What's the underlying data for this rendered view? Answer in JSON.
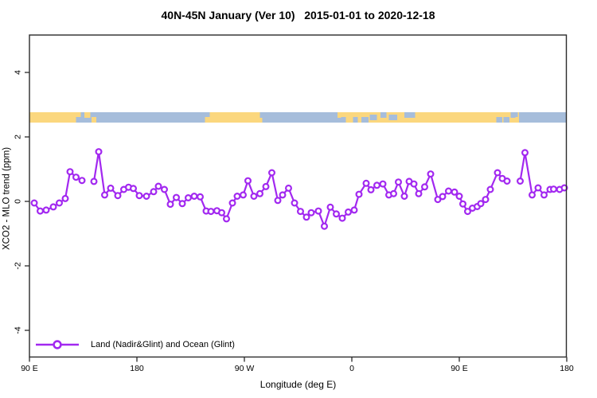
{
  "title": "40N-45N January (Ver 10)   2015-01-01 to 2020-12-18",
  "legend": {
    "label": "Land (Nadir&Glint) and Ocean (Glint)"
  },
  "colors": {
    "series": "#A228F0",
    "marker_fill": "#ffffff",
    "land": "#FBD77E",
    "ocean": "#A6BDDB",
    "axis": "#2b2b2b",
    "text": "#000000",
    "background": "#ffffff"
  },
  "chart_data": {
    "type": "line",
    "title": "40N-45N January (Ver 10)   2015-01-01 to 2020-12-18",
    "xlabel": "Longitude (deg E)",
    "ylabel": "XCO2 - MLO trend (ppm)",
    "xlim": [
      90,
      540
    ],
    "ylim": [
      -5,
      5.2
    ],
    "grid": false,
    "legend_position": "bottom-left-inside",
    "x_ticks": [
      {
        "deg": 90,
        "label": "90 E"
      },
      {
        "deg": 180,
        "label": "180"
      },
      {
        "deg": 270,
        "label": "90 W"
      },
      {
        "deg": 360,
        "label": "0"
      },
      {
        "deg": 450,
        "label": "90 E"
      },
      {
        "deg": 540,
        "label": "180"
      }
    ],
    "y_ticks": [
      {
        "v": -4,
        "label": "-4"
      },
      {
        "v": -2,
        "label": "-2"
      },
      {
        "v": 0,
        "label": "0"
      },
      {
        "v": 2,
        "label": "2"
      },
      {
        "v": 4,
        "label": "4"
      }
    ],
    "series": [
      {
        "name": "Land (Nadir&Glint) and Ocean (Glint)",
        "marker": "open-circle",
        "color": "#A228F0",
        "units": "ppm",
        "points": [
          [
            94,
            -0.05
          ],
          [
            99,
            -0.3
          ],
          [
            104,
            -0.27
          ],
          [
            110,
            -0.17
          ],
          [
            115,
            -0.05
          ],
          [
            120,
            0.09
          ],
          [
            124,
            0.92
          ],
          [
            129,
            0.75
          ],
          [
            134,
            0.65
          ],
          [
            144,
            0.62
          ],
          [
            148,
            1.54
          ],
          [
            153,
            0.2
          ],
          [
            158,
            0.41
          ],
          [
            164,
            0.18
          ],
          [
            169,
            0.37
          ],
          [
            173,
            0.44
          ],
          [
            177,
            0.4
          ],
          [
            182,
            0.18
          ],
          [
            188,
            0.16
          ],
          [
            194,
            0.3
          ],
          [
            198,
            0.47
          ],
          [
            203,
            0.37
          ],
          [
            208,
            -0.09
          ],
          [
            213,
            0.12
          ],
          [
            218,
            -0.07
          ],
          [
            223,
            0.11
          ],
          [
            228,
            0.16
          ],
          [
            233,
            0.14
          ],
          [
            238,
            -0.3
          ],
          [
            242,
            -0.31
          ],
          [
            247,
            -0.29
          ],
          [
            251,
            -0.35
          ],
          [
            255,
            -0.54
          ],
          [
            260,
            -0.05
          ],
          [
            264,
            0.16
          ],
          [
            269,
            0.2
          ],
          [
            273,
            0.64
          ],
          [
            278,
            0.16
          ],
          [
            283,
            0.24
          ],
          [
            288,
            0.46
          ],
          [
            293,
            0.89
          ],
          [
            298,
            0.03
          ],
          [
            302,
            0.2
          ],
          [
            307,
            0.41
          ],
          [
            312,
            -0.05
          ],
          [
            317,
            -0.31
          ],
          [
            322,
            -0.49
          ],
          [
            326,
            -0.35
          ],
          [
            332,
            -0.3
          ],
          [
            337,
            -0.77
          ],
          [
            342,
            -0.18
          ],
          [
            347,
            -0.39
          ],
          [
            352,
            -0.52
          ],
          [
            357,
            -0.33
          ],
          [
            362,
            -0.27
          ],
          [
            366,
            0.22
          ],
          [
            372,
            0.56
          ],
          [
            376,
            0.36
          ],
          [
            381,
            0.5
          ],
          [
            386,
            0.54
          ],
          [
            391,
            0.2
          ],
          [
            395,
            0.24
          ],
          [
            399,
            0.6
          ],
          [
            404,
            0.16
          ],
          [
            408,
            0.62
          ],
          [
            412,
            0.54
          ],
          [
            416,
            0.24
          ],
          [
            421,
            0.45
          ],
          [
            426,
            0.85
          ],
          [
            432,
            0.06
          ],
          [
            436,
            0.15
          ],
          [
            441,
            0.32
          ],
          [
            446,
            0.29
          ],
          [
            450,
            0.16
          ],
          [
            453,
            -0.08
          ],
          [
            457,
            -0.31
          ],
          [
            461,
            -0.21
          ],
          [
            465,
            -0.16
          ],
          [
            468,
            -0.07
          ],
          [
            472,
            0.06
          ],
          [
            476,
            0.37
          ],
          [
            482,
            0.89
          ],
          [
            486,
            0.71
          ],
          [
            490,
            0.63
          ],
          [
            501,
            0.63
          ],
          [
            505,
            1.51
          ],
          [
            511,
            0.2
          ],
          [
            516,
            0.42
          ],
          [
            521,
            0.2
          ],
          [
            526,
            0.37
          ],
          [
            529,
            0.38
          ],
          [
            534,
            0.37
          ],
          [
            538,
            0.42
          ]
        ],
        "gap_threshold_deg": 8
      }
    ],
    "map_band": {
      "description": "land/ocean strip along 40N-45N drawn near 2.6 ppm",
      "center_ppm": 2.6,
      "land_color": "#FBD77E",
      "ocean_color": "#A6BDDB",
      "land_segments_deg": [
        [
          90,
          133
        ],
        [
          241,
          289
        ],
        [
          351,
          500
        ]
      ],
      "ocean_segments_deg": [
        [
          133,
          241
        ],
        [
          289,
          351
        ],
        [
          500,
          540
        ]
      ],
      "patches": [
        {
          "from": 129,
          "to": 133,
          "type": "ocean",
          "pos": "bottom"
        },
        {
          "from": 136,
          "to": 141,
          "type": "land",
          "pos": "top"
        },
        {
          "from": 142,
          "to": 146,
          "type": "land",
          "pos": "bottom"
        },
        {
          "from": 237,
          "to": 241,
          "type": "land",
          "pos": "bottom"
        },
        {
          "from": 283,
          "to": 289,
          "type": "ocean",
          "pos": "top"
        },
        {
          "from": 285,
          "to": 289,
          "type": "ocean",
          "pos": "bottom"
        },
        {
          "from": 348,
          "to": 351,
          "type": "land",
          "pos": "top"
        },
        {
          "from": 351,
          "to": 355,
          "type": "ocean",
          "pos": "bottom"
        },
        {
          "from": 361,
          "to": 365,
          "type": "ocean",
          "pos": "bottom"
        },
        {
          "from": 368,
          "to": 374,
          "type": "ocean",
          "pos": "bottom"
        },
        {
          "from": 375,
          "to": 381,
          "type": "ocean",
          "pos": "mid"
        },
        {
          "from": 384,
          "to": 389,
          "type": "ocean",
          "pos": "top"
        },
        {
          "from": 391,
          "to": 398,
          "type": "ocean",
          "pos": "mid"
        },
        {
          "from": 404,
          "to": 413,
          "type": "ocean",
          "pos": "top"
        },
        {
          "from": 481,
          "to": 486,
          "type": "ocean",
          "pos": "bottom"
        },
        {
          "from": 487,
          "to": 492,
          "type": "ocean",
          "pos": "bottom"
        },
        {
          "from": 493,
          "to": 499,
          "type": "ocean",
          "pos": "top"
        },
        {
          "from": 497,
          "to": 500,
          "type": "land",
          "pos": "bottom"
        }
      ]
    }
  }
}
